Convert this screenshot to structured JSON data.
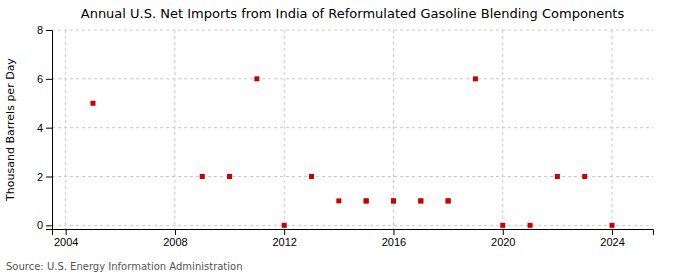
{
  "chart_data": {
    "type": "scatter",
    "title": "Annual U.S. Net Imports from India of Reformulated Gasoline Blending Components",
    "y_label": "Thousand Barrels per Day",
    "source": "Source: U.S. Energy Information Administration",
    "x": [
      2005,
      2009,
      2010,
      2011,
      2012,
      2013,
      2015,
      2016,
      2017,
      2018,
      2019,
      2022,
      2023,
      2024,
      2014,
      2015,
      2016,
      2017,
      2018,
      2020,
      2021
    ],
    "values": [
      5,
      2,
      2,
      6,
      0,
      2,
      1,
      1,
      1,
      1,
      6,
      2,
      2,
      0,
      1,
      1,
      1,
      1,
      1,
      0,
      0
    ],
    "color": "#cc0000",
    "marker": "square",
    "xlim": [
      2003.5,
      2025.5
    ],
    "ylim": [
      -0.15,
      8
    ],
    "xticks": [
      2004,
      2008,
      2012,
      2016,
      2020,
      2024
    ],
    "yticks": [
      0,
      2,
      4,
      6,
      8
    ],
    "grid": true
  }
}
